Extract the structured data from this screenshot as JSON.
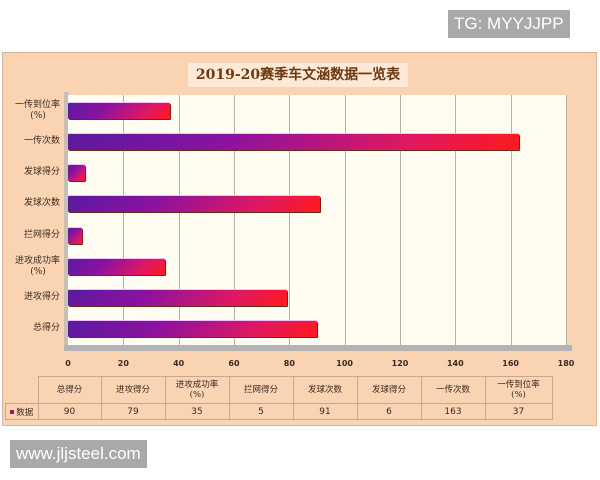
{
  "watermarks": {
    "top": "TG: MYYJJPP",
    "bottom": "www.jljsteel.com"
  },
  "chart_data": {
    "type": "bar",
    "orientation": "horizontal",
    "title": "2019-20赛季车文涵数据一览表",
    "categories": [
      "一传到位率(%)",
      "一传次数",
      "发球得分",
      "发球次数",
      "拦网得分",
      "进攻成功率(%)",
      "进攻得分",
      "总得分"
    ],
    "series": [
      {
        "name": "数据",
        "values": [
          37,
          163,
          6,
          91,
          5,
          35,
          79,
          90
        ]
      }
    ],
    "xlabel": "",
    "ylabel": "",
    "xlim": [
      0,
      180
    ],
    "xticks": [
      "0",
      "20",
      "40",
      "60",
      "80",
      "100",
      "120",
      "140",
      "160",
      "180"
    ],
    "grid": true,
    "legend_position": "data table below",
    "colors": {
      "panel_bg": "#fad3b2",
      "plot_bg": "#fffdf2",
      "bar_start": "#5a1aa0",
      "bar_end": "#ff1a1a"
    }
  },
  "ylabels": [
    {
      "line1": "一传到位率",
      "line2": "(%)"
    },
    {
      "line1": "一传次数",
      "line2": ""
    },
    {
      "line1": "发球得分",
      "line2": ""
    },
    {
      "line1": "发球次数",
      "line2": ""
    },
    {
      "line1": "拦网得分",
      "line2": ""
    },
    {
      "line1": "进攻成功率",
      "line2": "(%)"
    },
    {
      "line1": "进攻得分",
      "line2": ""
    },
    {
      "line1": "总得分",
      "line2": ""
    }
  ],
  "table": {
    "series_label": "数据",
    "headers": [
      {
        "line1": "总得分",
        "line2": ""
      },
      {
        "line1": "进攻得分",
        "line2": ""
      },
      {
        "line1": "进攻成功率",
        "line2": "(%)"
      },
      {
        "line1": "拦网得分",
        "line2": ""
      },
      {
        "line1": "发球次数",
        "line2": ""
      },
      {
        "line1": "发球得分",
        "line2": ""
      },
      {
        "line1": "一传次数",
        "line2": ""
      },
      {
        "line1": "一传到位率",
        "line2": "(%)"
      }
    ],
    "values": [
      "90",
      "79",
      "35",
      "5",
      "91",
      "6",
      "163",
      "37"
    ]
  }
}
